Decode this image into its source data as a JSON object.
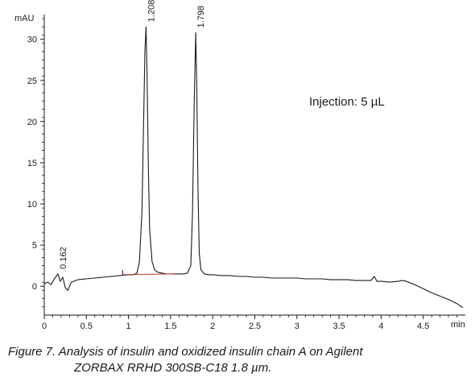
{
  "chart_data": {
    "type": "line",
    "ylabel": "mAU",
    "xlabel": "min",
    "xlim": [
      0,
      5
    ],
    "ylim": [
      -3.5,
      33
    ],
    "x_ticks": [
      0,
      0.5,
      1,
      1.5,
      2,
      2.5,
      3,
      3.5,
      4,
      4.5
    ],
    "x_tick_labels": [
      "0",
      "0.5",
      "1",
      "1.5",
      "2",
      "2.5",
      "3",
      "3.5",
      "4",
      "4.5"
    ],
    "y_ticks": [
      0,
      5,
      10,
      15,
      20,
      25,
      30
    ],
    "y_tick_labels": [
      "0",
      "5",
      "10",
      "15",
      "20",
      "25",
      "30"
    ],
    "grid": false,
    "peaks": [
      {
        "label": "0.162",
        "x": 0.162,
        "y": 1.5
      },
      {
        "label": "1.208",
        "x": 1.208,
        "y": 31.5
      },
      {
        "label": "1.798",
        "x": 1.798,
        "y": 30.8
      }
    ],
    "annotation": "Injection: 5 µL",
    "series": [
      {
        "x": [
          0.0,
          0.04,
          0.08,
          0.12,
          0.162,
          0.19,
          0.22,
          0.25,
          0.28,
          0.32,
          0.4,
          0.5,
          0.6,
          0.7,
          0.8,
          0.9,
          1.0,
          1.06,
          1.1,
          1.13,
          1.16,
          1.18,
          1.195,
          1.208,
          1.22,
          1.235,
          1.25,
          1.28,
          1.31,
          1.35,
          1.4,
          1.45,
          1.5,
          1.55,
          1.6,
          1.65,
          1.7,
          1.74,
          1.76,
          1.78,
          1.798,
          1.81,
          1.825,
          1.84,
          1.86,
          1.9,
          1.95,
          2.0,
          2.1,
          2.2,
          2.3,
          2.4,
          2.5,
          2.6,
          2.7,
          2.8,
          2.9,
          3.0,
          3.1,
          3.2,
          3.3,
          3.4,
          3.5,
          3.6,
          3.7,
          3.8,
          3.88,
          3.92,
          3.95,
          4.0,
          4.1,
          4.2,
          4.25,
          4.3,
          4.4,
          4.5,
          4.6,
          4.7,
          4.8,
          4.9,
          4.97
        ],
        "y": [
          0.3,
          0.5,
          0.2,
          0.9,
          1.5,
          0.6,
          1.1,
          -0.2,
          -0.5,
          0.5,
          0.8,
          0.9,
          1.0,
          1.1,
          1.2,
          1.3,
          1.4,
          1.4,
          1.6,
          3.0,
          9.0,
          20.0,
          28.5,
          31.5,
          26.0,
          15.0,
          7.0,
          3.0,
          2.0,
          1.7,
          1.6,
          1.5,
          1.5,
          1.5,
          1.5,
          1.5,
          1.6,
          2.5,
          9.0,
          22.0,
          30.8,
          25.0,
          12.0,
          4.0,
          2.0,
          1.5,
          1.4,
          1.4,
          1.3,
          1.3,
          1.2,
          1.2,
          1.1,
          1.1,
          1.0,
          1.0,
          1.0,
          1.0,
          0.9,
          0.9,
          0.9,
          0.8,
          0.8,
          0.8,
          0.7,
          0.7,
          0.7,
          1.2,
          0.6,
          0.6,
          0.5,
          0.6,
          0.7,
          0.6,
          0.2,
          -0.3,
          -0.8,
          -1.2,
          -1.6,
          -2.1,
          -2.6
        ]
      }
    ]
  },
  "caption": {
    "line1": "Figure 7. Analysis of insulin and oxidized insulin chain A on Agilent",
    "line2": "ZORBAX RRHD 300SB-C18 1.8 µm."
  },
  "colors": {
    "trace": "#1a1a1a",
    "axis": "#1a1a1a",
    "baseline_marker": "#c0392b"
  }
}
